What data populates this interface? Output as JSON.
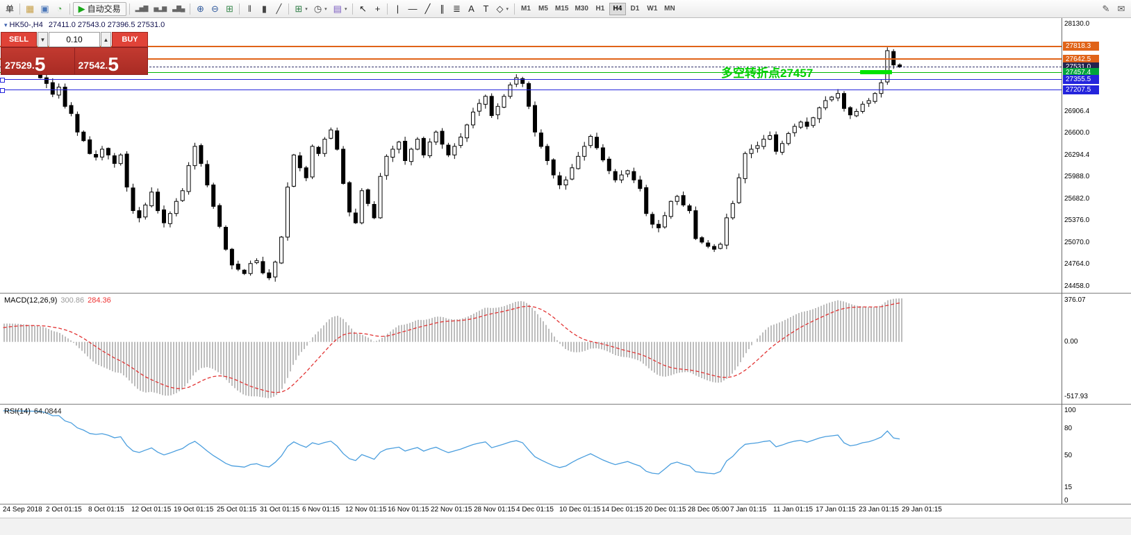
{
  "toolbar": {
    "groups": [
      {
        "items": [
          {
            "base": "new-order",
            "label": "单"
          }
        ]
      },
      {
        "items": [
          {
            "base": "market-watch",
            "glyph": "▦",
            "color": "#c79f46"
          },
          {
            "base": "data-window",
            "glyph": "▣",
            "color": "#4a76b8"
          },
          {
            "base": "navigator",
            "glyph": "◔",
            "color": "#4aa34a"
          }
        ]
      },
      {
        "items": [
          {
            "base": "autotrading",
            "glyph": "▶",
            "color": "#18a818",
            "label": "自动交易",
            "button": true
          }
        ]
      },
      {
        "items": [
          {
            "base": "indicator-list",
            "glyph": "▂▅▇",
            "color": "#666",
            "small": true
          },
          {
            "base": "indicator-window",
            "glyph": "▅▂▆",
            "color": "#666",
            "small": true
          },
          {
            "base": "objects-list",
            "glyph": "▃▇▄",
            "color": "#666",
            "small": true
          }
        ]
      },
      {
        "items": [
          {
            "base": "zoom-in",
            "glyph": "⊕",
            "color": "#335c9e"
          },
          {
            "base": "zoom-out",
            "glyph": "⊖",
            "color": "#335c9e"
          },
          {
            "base": "tile-windows",
            "glyph": "⊞",
            "color": "#3c8a50"
          }
        ]
      },
      {
        "items": [
          {
            "base": "bar-chart-mode",
            "glyph": "‖",
            "color": "#444"
          },
          {
            "base": "candlestick-mode",
            "glyph": "▮",
            "color": "#444"
          },
          {
            "base": "line-chart-mode",
            "glyph": "╱",
            "color": "#444"
          }
        ]
      },
      {
        "items": [
          {
            "base": "new-chart",
            "glyph": "⊞",
            "color": "#2f7d46",
            "caret": true
          },
          {
            "base": "period-selector",
            "glyph": "◷",
            "color": "#444",
            "caret": true
          },
          {
            "base": "template-selector",
            "glyph": "▤",
            "color": "#7b5cc0",
            "caret": true
          }
        ]
      },
      {
        "items": [
          {
            "base": "cursor-tool",
            "glyph": "↖",
            "color": "#222"
          },
          {
            "base": "crosshair-tool",
            "glyph": "+",
            "color": "#222"
          }
        ]
      },
      {
        "items": [
          {
            "base": "vertical-line-tool",
            "glyph": "|",
            "color": "#222"
          },
          {
            "base": "horizontal-line-tool",
            "glyph": "—",
            "color": "#222"
          },
          {
            "base": "trendline-tool",
            "glyph": "╱",
            "color": "#222"
          },
          {
            "base": "channel-tool",
            "glyph": "∥",
            "color": "#222"
          },
          {
            "base": "fibonacci-tool",
            "glyph": "≣",
            "color": "#222"
          },
          {
            "base": "text-tool",
            "glyph": "A",
            "color": "#222"
          },
          {
            "base": "text-label-tool",
            "glyph": "T",
            "color": "#222"
          },
          {
            "base": "shapes-tool",
            "glyph": "◇",
            "color": "#222",
            "caret": true
          }
        ]
      }
    ],
    "timeframes": [
      "M1",
      "M5",
      "M15",
      "M30",
      "H1",
      "H4",
      "D1",
      "W1",
      "MN"
    ],
    "active_timeframe": "H4",
    "right_icons": [
      {
        "base": "compose",
        "glyph": "✎",
        "color": "#555"
      },
      {
        "base": "message",
        "glyph": "✉",
        "color": "#555"
      }
    ]
  },
  "trade_panel": {
    "sell_label": "SELL",
    "buy_label": "BUY",
    "volume": "0.10",
    "volume_down_icon": "▼",
    "volume_up_icon": "▲",
    "sell_price_main": "27529.",
    "sell_price_big": "5",
    "buy_price_main": "27542.",
    "buy_price_big": "5"
  },
  "chart": {
    "title": "HK50-,H4",
    "title_icon": "▾",
    "ohlc": "27411.0 27543.0 27396.5 27531.0",
    "annotation": "多空转折点27457",
    "y_ticks": [
      "28130.0",
      "26906.4",
      "26600.0",
      "26294.4",
      "25988.0",
      "25682.0",
      "25376.0",
      "25070.0",
      "24764.0",
      "24458.0"
    ],
    "levels": [
      {
        "value": "27818.3",
        "num": 27818.3,
        "color": "#e06318",
        "width": 2,
        "style": "solid"
      },
      {
        "value": "27642.5",
        "num": 27642.5,
        "color": "#e06318",
        "width": 2,
        "style": "solid"
      },
      {
        "value": "27531.0",
        "num": 27531.0,
        "color": "#30306a",
        "badge": "#23234f",
        "width": 1,
        "style": "dashed",
        "current": true
      },
      {
        "value": "27457.4",
        "num": 27457.4,
        "color": "#00b400",
        "badge": "#00a43c",
        "width": 1,
        "style": "solid",
        "thick_segment": true
      },
      {
        "value": "27355.5",
        "num": 27355.5,
        "color": "#2424dc",
        "width": 1,
        "style": "solid",
        "handles": true
      },
      {
        "value": "27207.5",
        "num": 27207.5,
        "color": "#2424dc",
        "width": 1,
        "style": "solid",
        "handles": true
      }
    ],
    "x_labels": [
      "24 Sep 2018",
      "2 Oct 01:15",
      "8 Oct 01:15",
      "12 Oct 01:15",
      "19 Oct 01:15",
      "25 Oct 01:15",
      "31 Oct 01:15",
      "6 Nov 01:15",
      "12 Nov 01:15",
      "16 Nov 01:15",
      "22 Nov 01:15",
      "28 Nov 01:15",
      "4 Dec 01:15",
      "10 Dec 01:15",
      "14 Dec 01:15",
      "20 Dec 01:15",
      "28 Dec 05:00",
      "7 Jan 01:15",
      "11 Jan 01:15",
      "17 Jan 01:15",
      "23 Jan 01:15",
      "29 Jan 01:15"
    ]
  },
  "macd": {
    "name": "MACD(12,26,9)",
    "value_main": "300.86",
    "value_signal": "284.36",
    "ticks": [
      "376.07",
      "0.00",
      "-517.93"
    ]
  },
  "rsi": {
    "name": "RSI(14)",
    "value": "64.0844",
    "ticks": [
      "100",
      "80",
      "50",
      "15",
      "0"
    ]
  },
  "chart_data": {
    "type": "candlestick",
    "symbol": "HK50-",
    "timeframe": "H4",
    "last_bar": {
      "open": 27411.0,
      "high": 27543.0,
      "low": 27396.5,
      "close": 27531.0
    },
    "bid": 27529.5,
    "ask": 27542.5,
    "y_axis_range": [
      24370,
      28216
    ],
    "levels": [
      27818.3,
      27642.5,
      27531.0,
      27457.4,
      27355.5,
      27207.5
    ],
    "indicators": [
      {
        "name": "MACD",
        "fast": 12,
        "slow": 26,
        "signal": 9,
        "current_main": 300.86,
        "current_signal": 284.36,
        "scale": [
          -517.93,
          376.07
        ]
      },
      {
        "name": "RSI",
        "period": 14,
        "current": 64.0844,
        "scale": [
          0,
          100
        ]
      }
    ],
    "warmup_closes": [
      26850,
      26910,
      26970,
      27030,
      27090,
      27150,
      27200,
      27240,
      27280,
      27320,
      27350,
      27375,
      27395,
      27405,
      27410,
      27415,
      27410,
      27402,
      27395,
      27388
    ],
    "closes": [
      27380,
      27300,
      27150,
      27250,
      26980,
      26880,
      26620,
      26500,
      26320,
      26270,
      26380,
      26300,
      26180,
      26300,
      25850,
      25520,
      25420,
      25600,
      25780,
      25520,
      25350,
      25480,
      25650,
      25800,
      26150,
      26420,
      26180,
      25880,
      25580,
      25300,
      24980,
      24760,
      24700,
      24640,
      24780,
      24820,
      24650,
      24580,
      24800,
      25150,
      25850,
      26300,
      26120,
      25980,
      26420,
      26320,
      26520,
      26650,
      26380,
      25900,
      25500,
      25350,
      25800,
      25620,
      25420,
      26000,
      26280,
      26380,
      26480,
      26220,
      26380,
      26520,
      26300,
      26480,
      26620,
      26450,
      26300,
      26420,
      26550,
      26720,
      26900,
      27020,
      27120,
      26850,
      26980,
      27120,
      27280,
      27380,
      27300,
      26980,
      26620,
      26420,
      26220,
      26020,
      25880,
      25950,
      26120,
      26280,
      26420,
      26560,
      26400,
      26230,
      26080,
      25950,
      26020,
      26080,
      25950,
      25830,
      25480,
      25330,
      25280,
      25450,
      25650,
      25720,
      25600,
      25520,
      25130,
      25080,
      25020,
      24980,
      25050,
      25420,
      25620,
      25980,
      26320,
      26380,
      26430,
      26520,
      26570,
      26350,
      26460,
      26600,
      26700,
      26760,
      26700,
      26820,
      26960,
      27060,
      27110,
      27160,
      26950,
      26860,
      26910,
      27010,
      27060,
      27160,
      27310,
      27760,
      27560,
      27531
    ]
  }
}
